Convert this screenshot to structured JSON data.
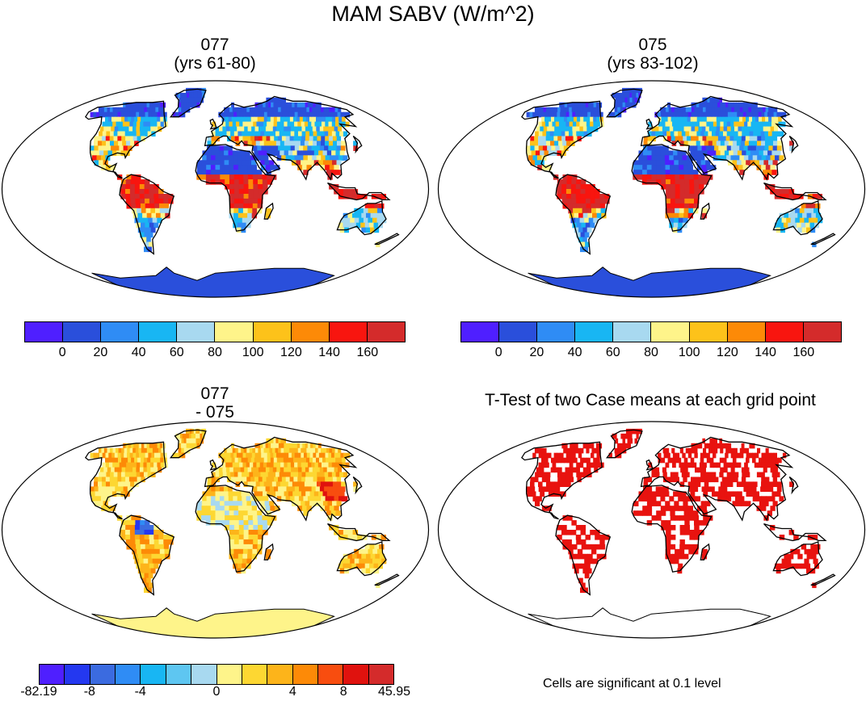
{
  "title": "MAM SABV (W/m^2)",
  "panels": [
    {
      "line1": "077",
      "line2": "(yrs 61-80)",
      "kind": "abs"
    },
    {
      "line1": "075",
      "line2": "(yrs 83-102)",
      "kind": "abs"
    },
    {
      "line1": "077",
      "line2": "- 075",
      "kind": "diff"
    },
    {
      "line1": "T-Test of two Case means at each grid point",
      "line2": "",
      "kind": "ttest"
    }
  ],
  "abs_colorbar": {
    "colors": [
      "#4f1fff",
      "#2a4fdb",
      "#2f8cf5",
      "#18b6f3",
      "#a8d9f0",
      "#fef48a",
      "#fdc21a",
      "#fd8a07",
      "#f8150f",
      "#d42b2b"
    ],
    "tick_labels": [
      "0",
      "20",
      "40",
      "60",
      "80",
      "100",
      "120",
      "140",
      "160"
    ]
  },
  "diff_colorbar": {
    "colors": [
      "#4f1fff",
      "#2438f0",
      "#3b6be0",
      "#2f8cf5",
      "#18b6f3",
      "#5ec6f1",
      "#a8d9f0",
      "#fef48a",
      "#fdd732",
      "#fdb41a",
      "#fd8a07",
      "#f84d0f",
      "#e0120e",
      "#d42b2b"
    ],
    "tick_labels": [
      "-82.19",
      "-8",
      "-4",
      "0",
      "4",
      "8",
      "45.95"
    ]
  },
  "ttest_note": "Cells are significant at 0.1 level",
  "map_colors": {
    "ocean": "#ffffff",
    "coast": "#000000",
    "sig": "#e8130f",
    "antarctica_abs": "#2a4fdb",
    "antarctica_diff": "#fef48a"
  }
}
